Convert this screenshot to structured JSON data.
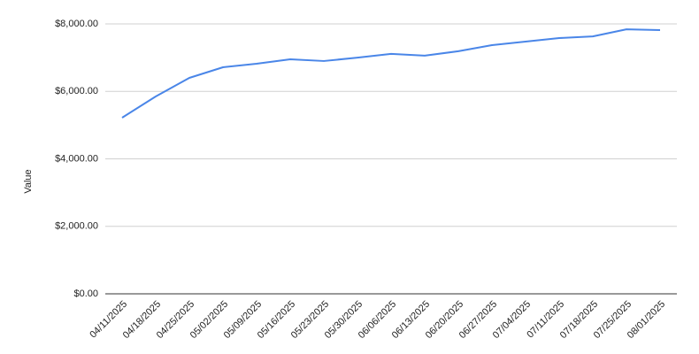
{
  "chart_data": {
    "type": "line",
    "y_label": "Value",
    "categories": [
      "04/11/2025",
      "04/18/2025",
      "04/25/2025",
      "05/02/2025",
      "05/09/2025",
      "05/16/2025",
      "05/23/2025",
      "05/30/2025",
      "06/06/2025",
      "06/13/2025",
      "06/20/2025",
      "06/27/2025",
      "07/04/2025",
      "07/11/2025",
      "07/18/2025",
      "07/25/2025",
      "08/01/2025"
    ],
    "values": [
      5220,
      5850,
      6400,
      6715,
      6820,
      6950,
      6900,
      7000,
      7110,
      7060,
      7190,
      7370,
      7475,
      7580,
      7630,
      7840,
      7815
    ],
    "color": "#4a86e8",
    "ylim": [
      0,
      8000
    ],
    "yticks": [
      {
        "value": 0,
        "label": "$0.00"
      },
      {
        "value": 2000,
        "label": "$2,000.00"
      },
      {
        "value": 4000,
        "label": "$4,000.00"
      },
      {
        "value": 6000,
        "label": "$6,000.00"
      },
      {
        "value": 8000,
        "label": "$8,000.00"
      }
    ],
    "grid": true
  }
}
